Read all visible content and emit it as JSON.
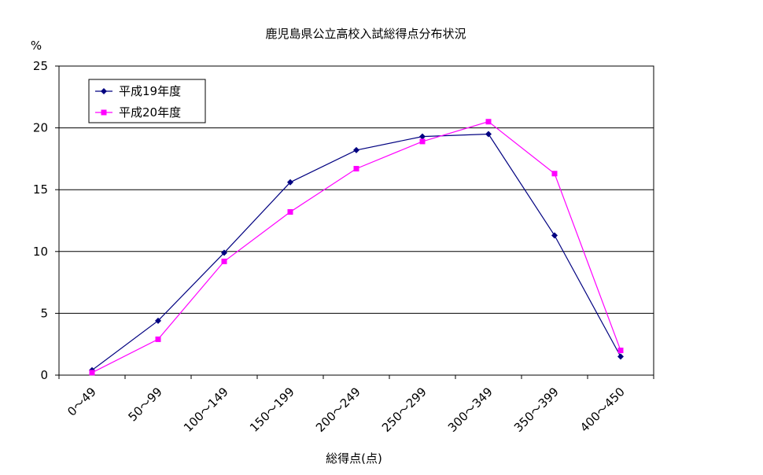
{
  "chart_data": {
    "type": "line",
    "title": "鹿児島県公立高校入試総得点分布状況",
    "xlabel": "総得点(点)",
    "ylabel": "%",
    "ylim": [
      0,
      25
    ],
    "yticks": [
      "0",
      "5",
      "10",
      "15",
      "20",
      "25"
    ],
    "grid": true,
    "legend_position": "top-left",
    "categories": [
      "0～49",
      "50～99",
      "100～149",
      "150～199",
      "200～249",
      "250～299",
      "300～349",
      "350～399",
      "400～450"
    ],
    "series": [
      {
        "name": "平成19年度",
        "color": "#000080",
        "marker": "diamond",
        "values": [
          0.4,
          4.4,
          9.9,
          15.6,
          18.2,
          19.3,
          19.5,
          11.3,
          1.5
        ]
      },
      {
        "name": "平成20年度",
        "color": "#ff00ff",
        "marker": "square",
        "values": [
          0.2,
          2.9,
          9.2,
          13.2,
          16.7,
          18.9,
          20.5,
          16.3,
          2.0
        ]
      }
    ]
  }
}
